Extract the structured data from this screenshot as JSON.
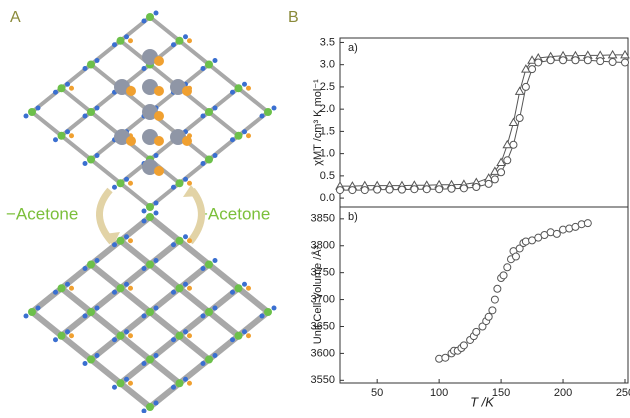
{
  "panels": {
    "left_label": "A",
    "right_label": "B",
    "remove_text": "−Acetone",
    "add_text": "+Acetone"
  },
  "chart_data": [
    {
      "type": "line",
      "panel_label": "a)",
      "ylabel": "χMT /cm³ K mol⁻¹",
      "x": [
        20,
        30,
        40,
        50,
        60,
        70,
        80,
        90,
        100,
        110,
        120,
        130,
        140,
        145,
        150,
        155,
        160,
        165,
        170,
        175,
        180,
        190,
        200,
        210,
        220,
        230,
        240,
        250
      ],
      "series": [
        {
          "name": "triangles",
          "marker": "triangle",
          "color": "#555555",
          "values": [
            0.27,
            0.27,
            0.28,
            0.28,
            0.28,
            0.28,
            0.29,
            0.29,
            0.3,
            0.3,
            0.31,
            0.35,
            0.45,
            0.6,
            0.8,
            1.2,
            1.7,
            2.4,
            2.9,
            3.1,
            3.15,
            3.18,
            3.2,
            3.2,
            3.21,
            3.21,
            3.22,
            3.22
          ]
        },
        {
          "name": "circles",
          "marker": "circle",
          "color": "#555555",
          "values": [
            0.18,
            0.18,
            0.18,
            0.19,
            0.19,
            0.19,
            0.2,
            0.2,
            0.2,
            0.21,
            0.22,
            0.25,
            0.32,
            0.42,
            0.58,
            0.85,
            1.2,
            1.8,
            2.5,
            2.9,
            3.05,
            3.1,
            3.1,
            3.1,
            3.1,
            3.08,
            3.06,
            3.05
          ]
        }
      ],
      "xlim": [
        20,
        250
      ],
      "ylim": [
        -0.2,
        3.6
      ],
      "yticks": [
        {
          "value": 0,
          "label": "0.0"
        },
        {
          "value": 0.5,
          "label": "0.5"
        },
        {
          "value": 1,
          "label": "1.0"
        },
        {
          "value": 1.5,
          "label": "1.5"
        },
        {
          "value": 2,
          "label": "2.0"
        },
        {
          "value": 2.5,
          "label": "2.5"
        },
        {
          "value": 3,
          "label": "3.0"
        },
        {
          "value": 3.5,
          "label": "3.5"
        }
      ]
    },
    {
      "type": "scatter",
      "panel_label": "b)",
      "ylabel": "Unit Cell Volume /Å³",
      "xlabel": "T /K",
      "x": [
        100,
        105,
        110,
        112,
        115,
        118,
        120,
        125,
        128,
        130,
        135,
        138,
        140,
        143,
        145,
        147,
        150,
        152,
        155,
        158,
        160,
        162,
        165,
        168,
        170,
        175,
        180,
        185,
        190,
        195,
        200,
        205,
        210,
        215,
        220
      ],
      "series": [
        {
          "name": "volume",
          "marker": "circle",
          "color": "#555555",
          "values": [
            3590,
            3592,
            3600,
            3605,
            3605,
            3610,
            3615,
            3625,
            3632,
            3640,
            3650,
            3660,
            3668,
            3680,
            3700,
            3720,
            3740,
            3745,
            3760,
            3775,
            3790,
            3780,
            3795,
            3805,
            3808,
            3810,
            3815,
            3820,
            3825,
            3822,
            3830,
            3832,
            3835,
            3840,
            3842
          ]
        }
      ],
      "xlim": [
        20,
        250
      ],
      "ylim": [
        3545,
        3872
      ],
      "xticks": [
        50,
        100,
        150,
        200,
        250
      ],
      "yticks": [
        3550,
        3600,
        3650,
        3700,
        3750,
        3800,
        3850
      ]
    }
  ]
}
